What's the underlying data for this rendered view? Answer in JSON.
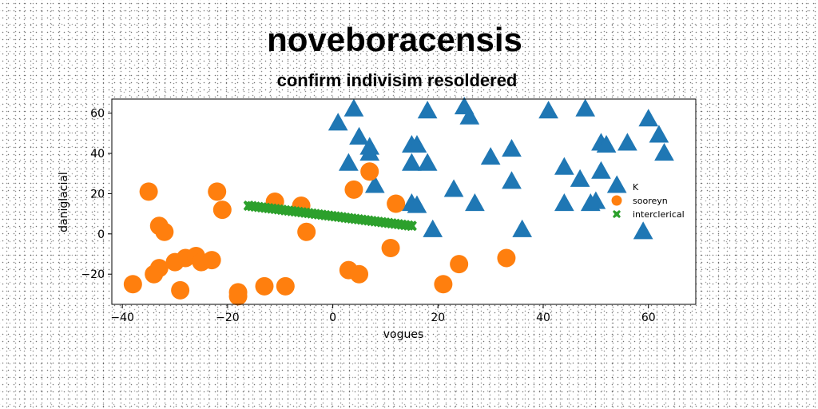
{
  "chart_data": {
    "type": "scatter",
    "title": "noveboracensis",
    "subtitle": "confirm indivisim resoldered",
    "xlabel": "vogues",
    "ylabel": "daniglacial",
    "xlim": [
      -42,
      69
    ],
    "ylim": [
      -35,
      67
    ],
    "xticks": [
      -40,
      -20,
      0,
      20,
      40,
      60
    ],
    "yticks": [
      -20,
      0,
      20,
      40,
      60
    ],
    "grid": false,
    "legend_position": "center-right",
    "series": [
      {
        "name": "K",
        "marker": "triangle",
        "color": "#1f77b4",
        "points": [
          [
            4,
            62
          ],
          [
            1,
            55
          ],
          [
            5,
            48
          ],
          [
            7,
            43
          ],
          [
            7,
            40
          ],
          [
            3,
            35
          ],
          [
            8,
            24
          ],
          [
            15,
            44
          ],
          [
            16,
            44
          ],
          [
            15,
            35
          ],
          [
            18,
            35
          ],
          [
            18,
            61
          ],
          [
            25,
            63
          ],
          [
            26,
            58
          ],
          [
            30,
            38
          ],
          [
            34,
            42
          ],
          [
            34,
            26
          ],
          [
            23,
            22
          ],
          [
            27,
            15
          ],
          [
            15,
            15
          ],
          [
            16,
            14
          ],
          [
            19,
            2
          ],
          [
            36,
            2
          ],
          [
            41,
            61
          ],
          [
            48,
            62
          ],
          [
            44,
            33
          ],
          [
            47,
            27
          ],
          [
            44,
            15
          ],
          [
            49,
            15
          ],
          [
            50,
            16
          ],
          [
            51,
            31
          ],
          [
            51,
            45
          ],
          [
            52,
            44
          ],
          [
            56,
            45
          ],
          [
            60,
            57
          ],
          [
            62,
            49
          ],
          [
            63,
            40
          ],
          [
            59,
            1
          ],
          [
            54,
            24
          ]
        ]
      },
      {
        "name": "sooreyn",
        "marker": "circle",
        "color": "#ff7f0e",
        "points": [
          [
            -35,
            21
          ],
          [
            -33,
            4
          ],
          [
            -32,
            1
          ],
          [
            -38,
            -25
          ],
          [
            -34,
            -20
          ],
          [
            -33,
            -17
          ],
          [
            -30,
            -14
          ],
          [
            -28,
            -12
          ],
          [
            -26,
            -11
          ],
          [
            -25,
            -14
          ],
          [
            -23,
            -13
          ],
          [
            -29,
            -28
          ],
          [
            -22,
            21
          ],
          [
            -21,
            12
          ],
          [
            -18,
            -29
          ],
          [
            -18,
            -31
          ],
          [
            -13,
            -26
          ],
          [
            -9,
            -26
          ],
          [
            -11,
            16
          ],
          [
            -6,
            14
          ],
          [
            -5,
            1
          ],
          [
            4,
            22
          ],
          [
            7,
            31
          ],
          [
            12,
            15
          ],
          [
            11,
            -7
          ],
          [
            3,
            -18
          ],
          [
            5,
            -20
          ],
          [
            21,
            -25
          ],
          [
            24,
            -15
          ],
          [
            33,
            -12
          ]
        ]
      },
      {
        "name": "intercleric al",
        "display_name": "interclerical",
        "marker": "x",
        "color": "#2ca02c",
        "line_from": [
          -16,
          14
        ],
        "line_to": [
          15,
          4
        ],
        "count": 50
      }
    ]
  }
}
